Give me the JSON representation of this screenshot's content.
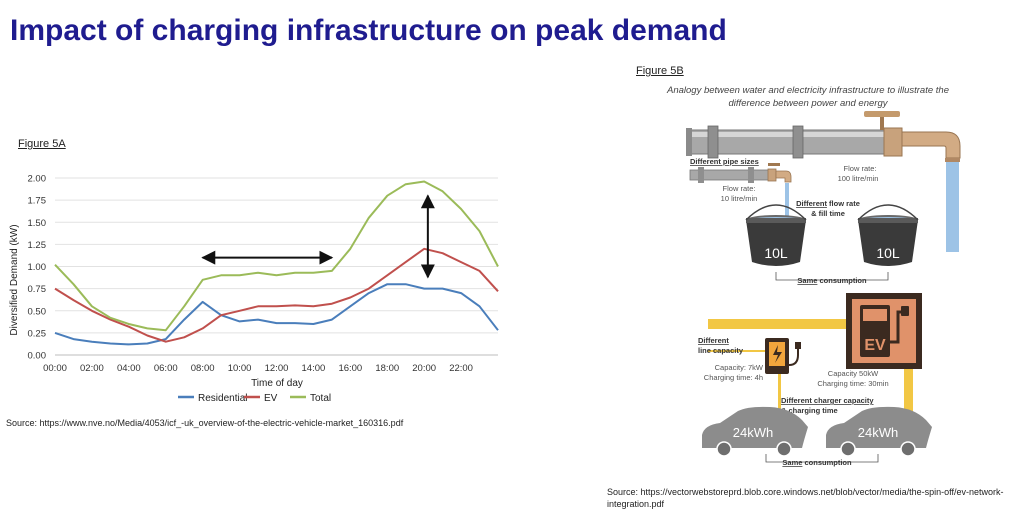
{
  "page": {
    "title": "Impact of charging infrastructure on peak demand"
  },
  "figure_a": {
    "label": "Figure 5A",
    "source": "Source: https://www.nve.no/Media/4053/icf_-uk_overview-of-the-electric-vehicle-market_160316.pdf"
  },
  "figure_b": {
    "label": "Figure 5B",
    "caption_line1": "Analogy between water and electricity infrastructure to illustrate the",
    "caption_line2": "difference between power and energy",
    "different_pipe_sizes": "Different pipe sizes",
    "flow_big_line1": "Flow rate:",
    "flow_big_line2": "100 litre/min",
    "flow_small_line1": "Flow rate:",
    "flow_small_line2": "10 litre/min",
    "flow_fill_bold": "Different",
    "flow_fill_line1_rest": " flow rate",
    "flow_fill_line2": "& fill time",
    "bucket_small": "10L",
    "bucket_big": "10L",
    "same_consumption_1_bold": "Same",
    "same_consumption_1_rest": " consumption",
    "ev_sign": "EV",
    "line_capacity_line1": "Different",
    "line_capacity_line2": "line capacity",
    "cap_small_line1": "Capacity: 7kW",
    "cap_small_line2": "Charging time: 4h",
    "cap_big_line1": "Capacity 50kW",
    "cap_big_line2": "Charging time: 30min",
    "charger_cap_line1": "Different charger capacity",
    "charger_cap_line2": "& charging time",
    "car_left": "24kWh",
    "car_right": "24kWh",
    "same_consumption_2_bold": "Same",
    "same_consumption_2_rest": " consumption",
    "source_line1": "Source: https://vectorwebstoreprd.blob.core.windows.net/blob/vector/media/the-spin-off/ev-network-",
    "source_line2": "integration.pdf"
  },
  "chart_data": {
    "type": "line",
    "title": "",
    "xlabel": "Time of day",
    "ylabel": "Diversified Demand (kW)",
    "x_tick_labels": [
      "00:00",
      "02:00",
      "04:00",
      "06:00",
      "08:00",
      "10:00",
      "12:00",
      "14:00",
      "16:00",
      "18:00",
      "20:00",
      "22:00"
    ],
    "x_hours": [
      0,
      1,
      2,
      3,
      4,
      5,
      6,
      7,
      8,
      9,
      10,
      11,
      12,
      13,
      14,
      15,
      16,
      17,
      18,
      19,
      20,
      21,
      22,
      23,
      24
    ],
    "y_ticks": [
      "0.00",
      "0.25",
      "0.50",
      "0.75",
      "1.00",
      "1.25",
      "1.50",
      "1.75",
      "2.00"
    ],
    "xlim": [
      0,
      24
    ],
    "ylim": [
      0,
      2.0
    ],
    "grid": true,
    "legend_position": "bottom",
    "series": [
      {
        "name": "Residential",
        "color": "#4a7ebb",
        "values": [
          0.25,
          0.18,
          0.15,
          0.13,
          0.12,
          0.13,
          0.18,
          0.4,
          0.6,
          0.45,
          0.38,
          0.4,
          0.36,
          0.36,
          0.35,
          0.4,
          0.55,
          0.7,
          0.8,
          0.8,
          0.75,
          0.75,
          0.7,
          0.55,
          0.28
        ]
      },
      {
        "name": "EV",
        "color": "#c0504d",
        "values": [
          0.75,
          0.62,
          0.5,
          0.4,
          0.32,
          0.22,
          0.15,
          0.2,
          0.3,
          0.45,
          0.5,
          0.55,
          0.55,
          0.56,
          0.55,
          0.58,
          0.65,
          0.75,
          0.9,
          1.05,
          1.2,
          1.15,
          1.05,
          0.95,
          0.72
        ]
      },
      {
        "name": "Total",
        "color": "#9bbb59",
        "values": [
          1.02,
          0.8,
          0.55,
          0.42,
          0.35,
          0.3,
          0.28,
          0.55,
          0.85,
          0.9,
          0.9,
          0.93,
          0.9,
          0.93,
          0.93,
          0.95,
          1.2,
          1.55,
          1.8,
          1.93,
          1.96,
          1.85,
          1.65,
          1.4,
          1.0
        ]
      }
    ],
    "annotations": [
      {
        "type": "double-arrow-horizontal",
        "from_hour": 8,
        "to_hour": 15,
        "y": 1.1
      },
      {
        "type": "double-arrow-vertical",
        "hour": 20.2,
        "from_y": 0.88,
        "to_y": 1.8
      }
    ]
  }
}
